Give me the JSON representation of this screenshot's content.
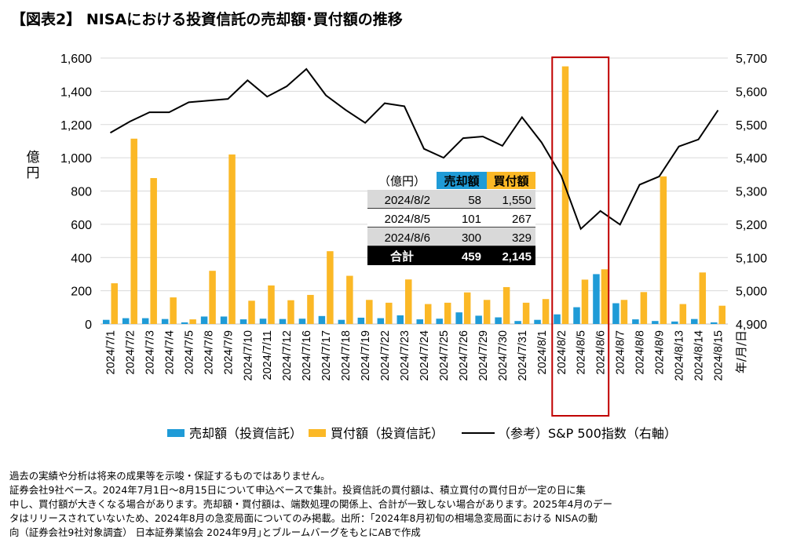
{
  "title": "【図表2】 NISAにおける投資信託の売却額･買付額の推移",
  "chart_data": {
    "type": "bar",
    "categories": [
      "2024/7/1",
      "2024/7/2",
      "2024/7/3",
      "2024/7/4",
      "2024/7/5",
      "2024/7/8",
      "2024/7/9",
      "2024/7/10",
      "2024/7/11",
      "2024/7/12",
      "2024/7/16",
      "2024/7/17",
      "2024/7/18",
      "2024/7/19",
      "2024/7/22",
      "2024/7/23",
      "2024/7/24",
      "2024/7/25",
      "2024/7/26",
      "2024/7/29",
      "2024/7/30",
      "2024/7/31",
      "2024/8/1",
      "2024/8/2",
      "2024/8/5",
      "2024/8/6",
      "2024/8/7",
      "2024/8/8",
      "2024/8/9",
      "2024/8/13",
      "2024/8/14",
      "2024/8/15"
    ],
    "series": [
      {
        "name": "売却額（投資信託）",
        "axis": "left",
        "kind": "bar",
        "color": "#1F9BD7",
        "values": [
          25,
          35,
          35,
          30,
          10,
          45,
          45,
          28,
          32,
          30,
          32,
          48,
          25,
          38,
          35,
          52,
          28,
          32,
          70,
          50,
          40,
          18,
          25,
          58,
          101,
          300,
          125,
          28,
          18,
          15,
          30,
          10
        ]
      },
      {
        "name": "買付額（投資信託）",
        "axis": "left",
        "kind": "bar",
        "color": "#FBB826",
        "values": [
          245,
          1115,
          878,
          160,
          28,
          320,
          1020,
          140,
          232,
          143,
          175,
          438,
          290,
          145,
          128,
          268,
          120,
          128,
          190,
          145,
          222,
          128,
          150,
          1550,
          267,
          329,
          145,
          192,
          888,
          120,
          310,
          110
        ]
      },
      {
        "name": "（参考）S&P 500指数（右軸）",
        "axis": "right",
        "kind": "line",
        "color": "#000000",
        "values": [
          5475,
          5509,
          5537,
          5537,
          5567,
          5572,
          5577,
          5633,
          5584,
          5615,
          5667,
          5588,
          5544,
          5505,
          5564,
          5555,
          5427,
          5400,
          5459,
          5464,
          5436,
          5522,
          5446,
          5346,
          5186,
          5240,
          5199,
          5319,
          5344,
          5434,
          5455,
          5543
        ]
      }
    ],
    "ylabel": "億円",
    "ylim": [
      0,
      1600
    ],
    "yticks": [
      "0",
      "200",
      "400",
      "600",
      "800",
      "1,000",
      "1,200",
      "1,400",
      "1,600"
    ],
    "y2lim": [
      4900,
      5700
    ],
    "y2ticks": [
      "4,900",
      "5,000",
      "5,100",
      "5,200",
      "5,300",
      "5,400",
      "5,500",
      "5,600",
      "5,700"
    ],
    "xlabel": "年/月/日",
    "grid": true,
    "highlight": {
      "categories": [
        "2024/8/2",
        "2024/8/5",
        "2024/8/6"
      ],
      "color": "#C00000"
    },
    "inset_table": {
      "unit": "（億円）",
      "headers": [
        "売却額",
        "買付額"
      ],
      "header_colors": [
        "#1F9BD7",
        "#FBB826"
      ],
      "rows": [
        {
          "date": "2024/8/2",
          "sell": "58",
          "buy": "1,550"
        },
        {
          "date": "2024/8/5",
          "sell": "101",
          "buy": "267"
        },
        {
          "date": "2024/8/6",
          "sell": "300",
          "buy": "329"
        }
      ],
      "total": {
        "label": "合計",
        "sell": "459",
        "buy": "2,145"
      }
    }
  },
  "legend": {
    "sell": "売却額（投資信託）",
    "buy": "買付額（投資信託）",
    "line": "（参考）S&P 500指数（右軸）"
  },
  "notes": [
    "過去の実績や分析は将来の成果等を示唆・保証するものではありません。",
    "証券会社9社ベース。2024年7月1日～8月15日について申込ベースで集計。投資信託の買付額は、積立買付の買付日が一定の日に集",
    "中し、買付額が大きくなる場合があります。売却額・買付額は、端数処理の関係上、合計が一致しない場合があります。2025年4月のデー",
    "タはリリースされていないため、2024年8月の急変局面についてのみ掲載。出所：｢2024年8月初旬の相場急変局面における NISAの動",
    "向（証券会社9社対象調査） 日本証券業協会 2024年9月｣とブルームバーグをもとにABで作成"
  ]
}
